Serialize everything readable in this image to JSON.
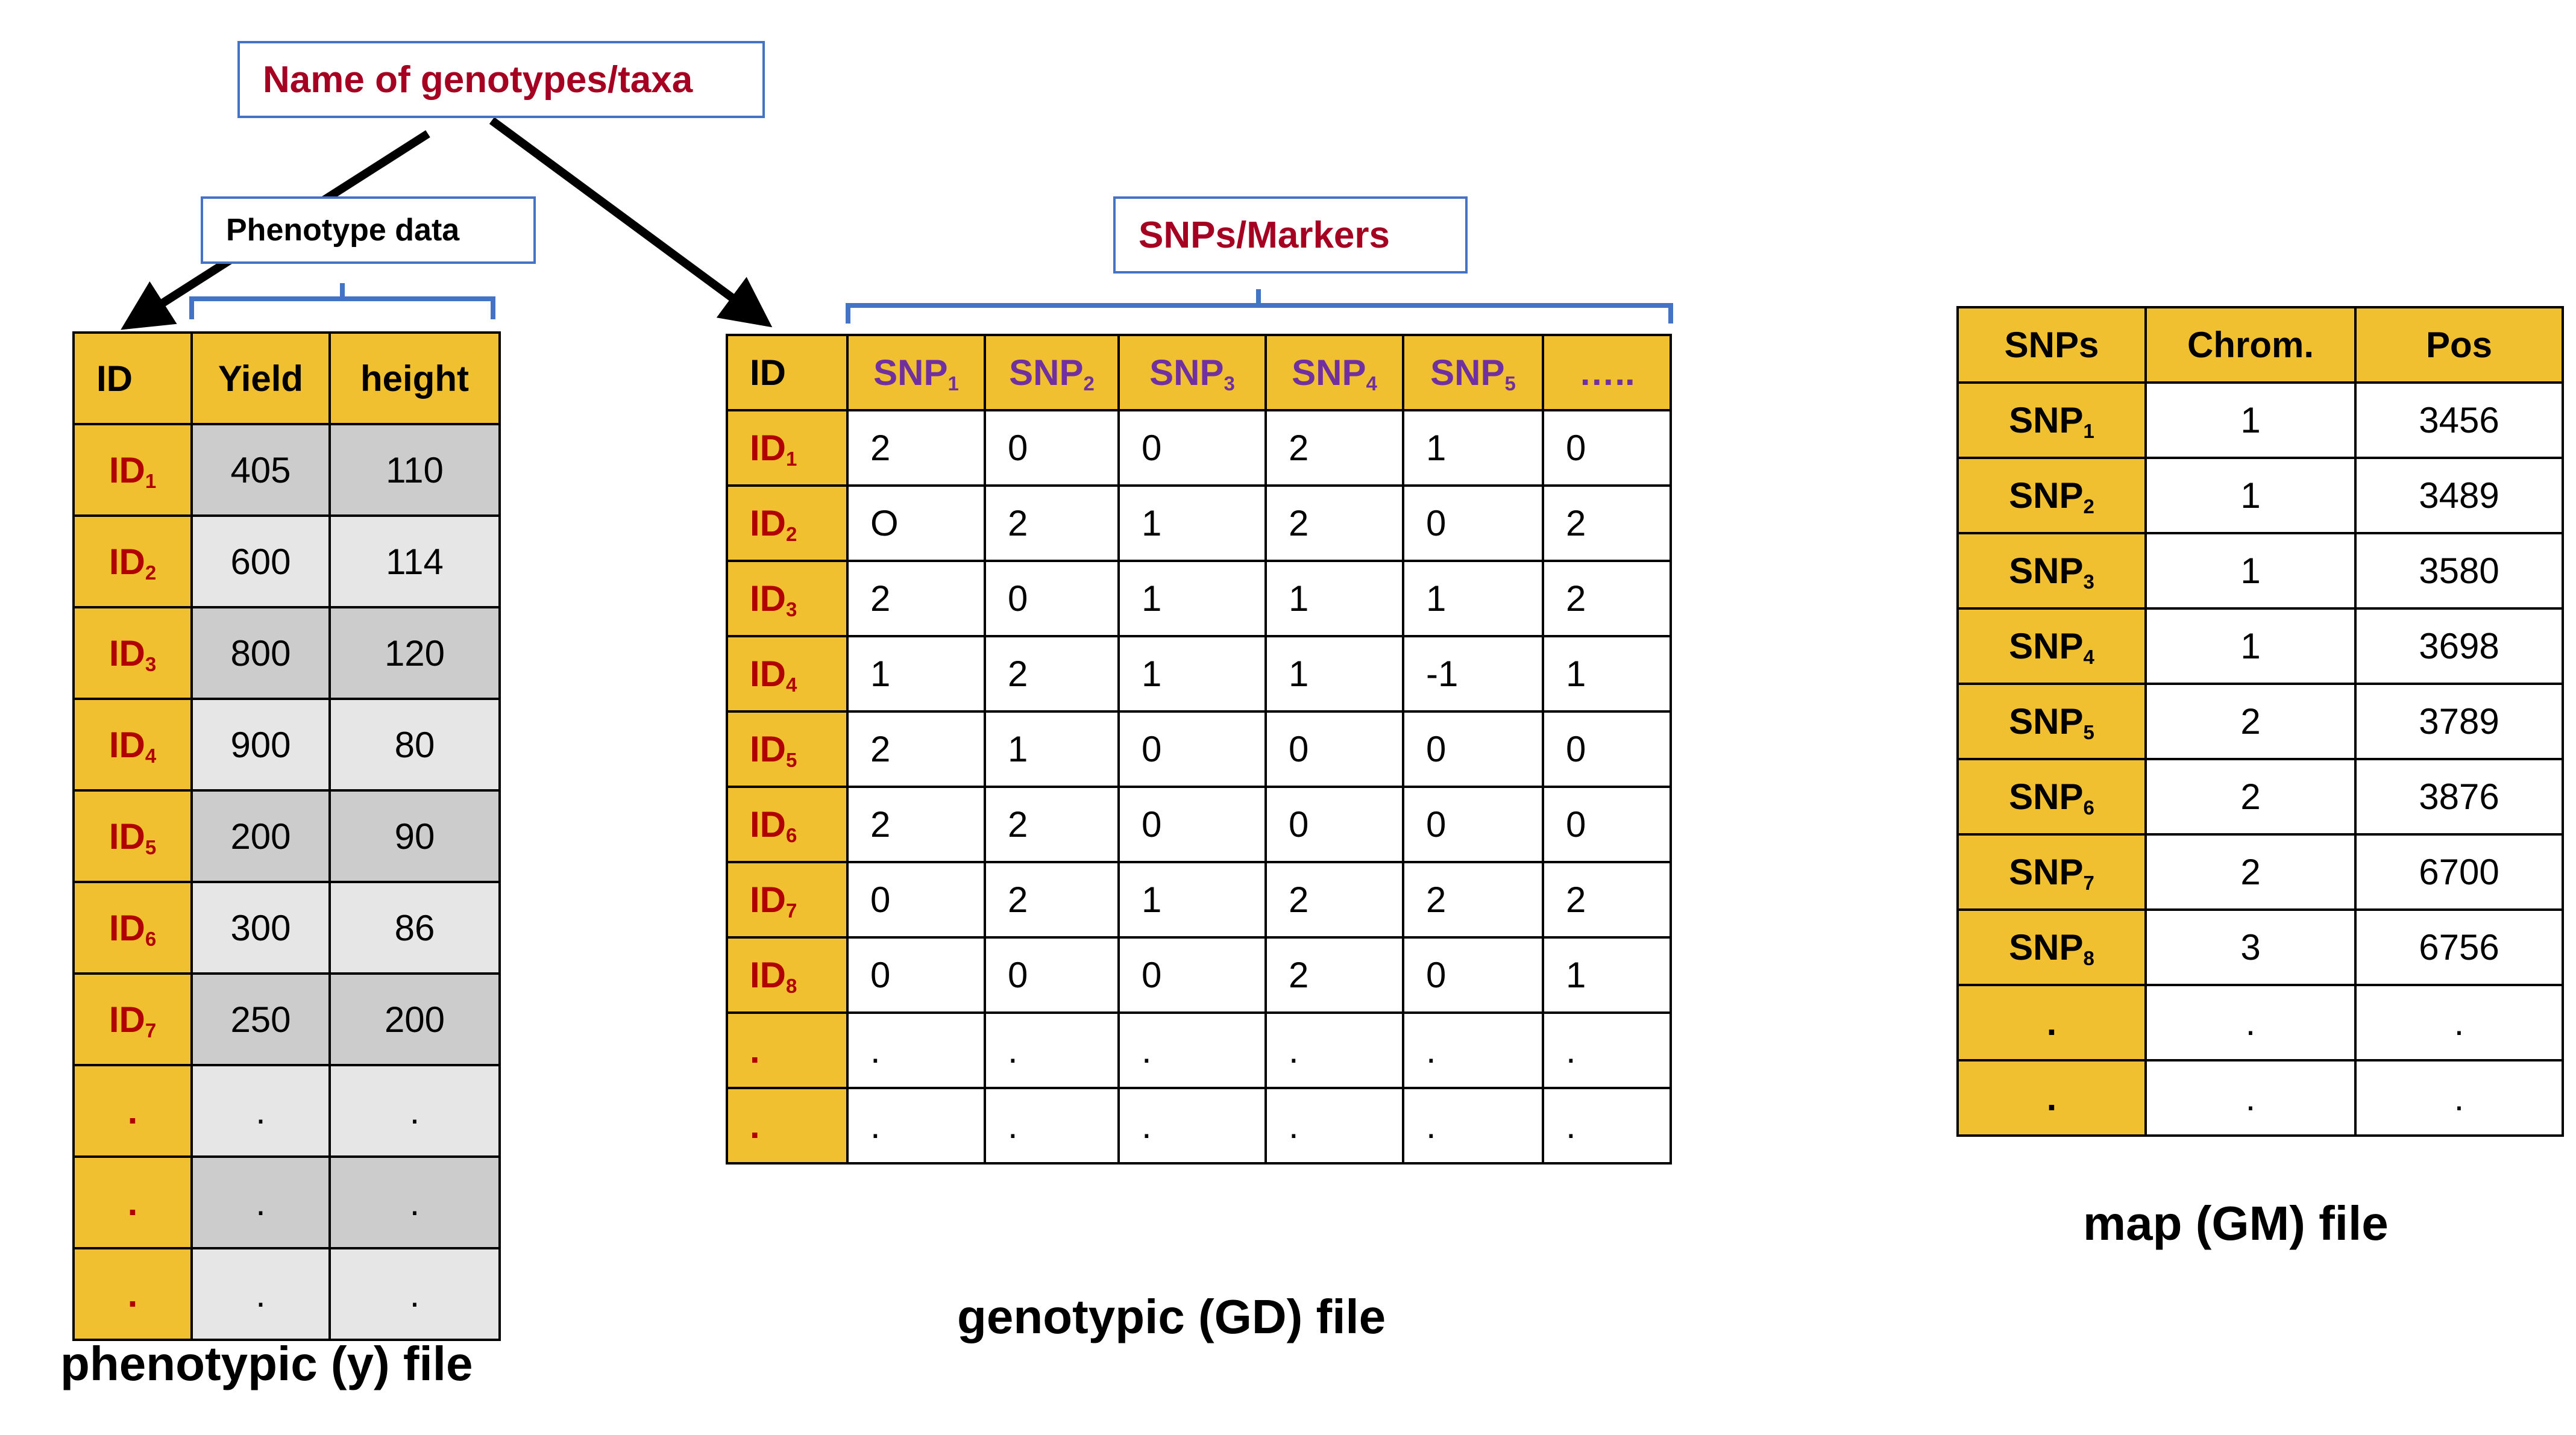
{
  "callouts": {
    "taxa": "Name of genotypes/taxa",
    "phenotype": "Phenotype data",
    "snps": "SNPs/Markers"
  },
  "colors": {
    "header_fill": "#f0c030",
    "id_text": "#b00000",
    "snp_header_text": "#7030a0",
    "callout_border": "#4472c4",
    "callout_red_text": "#a50021"
  },
  "phenotype_table": {
    "header": [
      "ID",
      "Yield",
      "height"
    ],
    "rows": [
      {
        "id": "ID",
        "sub": "1",
        "values": [
          "405",
          "110"
        ]
      },
      {
        "id": "ID",
        "sub": "2",
        "values": [
          "600",
          "114"
        ]
      },
      {
        "id": "ID",
        "sub": "3",
        "values": [
          "800",
          "120"
        ]
      },
      {
        "id": "ID",
        "sub": "4",
        "values": [
          "900",
          "80"
        ]
      },
      {
        "id": "ID",
        "sub": "5",
        "values": [
          "200",
          "90"
        ]
      },
      {
        "id": "ID",
        "sub": "6",
        "values": [
          "300",
          "86"
        ]
      },
      {
        "id": "ID",
        "sub": "7",
        "values": [
          "250",
          "200"
        ]
      },
      {
        "id": ".",
        "sub": "",
        "values": [
          ".",
          "."
        ]
      },
      {
        "id": ".",
        "sub": "",
        "values": [
          ".",
          "."
        ]
      },
      {
        "id": ".",
        "sub": "",
        "values": [
          ".",
          "."
        ]
      }
    ],
    "caption": "phenotypic (y) file"
  },
  "genotype_table": {
    "header": [
      {
        "text": "ID",
        "sub": ""
      },
      {
        "text": "SNP",
        "sub": "1"
      },
      {
        "text": "SNP",
        "sub": "2"
      },
      {
        "text": "SNP",
        "sub": "3"
      },
      {
        "text": "SNP",
        "sub": "4"
      },
      {
        "text": "SNP",
        "sub": "5"
      },
      {
        "text": "…..",
        "sub": ""
      }
    ],
    "rows": [
      {
        "id": "ID",
        "sub": "1",
        "values": [
          "2",
          "0",
          "0",
          "2",
          "1",
          "0"
        ]
      },
      {
        "id": "ID",
        "sub": "2",
        "values": [
          "O",
          "2",
          "1",
          "2",
          "0",
          "2"
        ]
      },
      {
        "id": "ID",
        "sub": "3",
        "values": [
          "2",
          "0",
          "1",
          "1",
          "1",
          "2"
        ]
      },
      {
        "id": "ID",
        "sub": "4",
        "values": [
          "1",
          "2",
          "1",
          "1",
          "-1",
          "1"
        ]
      },
      {
        "id": "ID",
        "sub": "5",
        "values": [
          "2",
          "1",
          "0",
          "0",
          "0",
          "0"
        ]
      },
      {
        "id": "ID",
        "sub": "6",
        "values": [
          "2",
          "2",
          "0",
          "0",
          "0",
          "0"
        ]
      },
      {
        "id": "ID",
        "sub": "7",
        "values": [
          "0",
          "2",
          "1",
          "2",
          "2",
          "2"
        ]
      },
      {
        "id": "ID",
        "sub": "8",
        "values": [
          "0",
          "0",
          "0",
          "2",
          "0",
          "1"
        ]
      },
      {
        "id": ".",
        "sub": "",
        "values": [
          ".",
          ".",
          ".",
          ".",
          ".",
          "."
        ]
      },
      {
        "id": ".",
        "sub": "",
        "values": [
          ".",
          ".",
          ".",
          ".",
          ".",
          "."
        ]
      }
    ],
    "caption": "genotypic (GD) file"
  },
  "map_table": {
    "header": [
      "SNPs",
      "Chrom.",
      "Pos"
    ],
    "rows": [
      {
        "snp": "SNP",
        "sub": "1",
        "chrom": "1",
        "pos": "3456"
      },
      {
        "snp": "SNP",
        "sub": "2",
        "chrom": "1",
        "pos": "3489"
      },
      {
        "snp": "SNP",
        "sub": "3",
        "chrom": "1",
        "pos": "3580"
      },
      {
        "snp": "SNP",
        "sub": "4",
        "chrom": "1",
        "pos": "3698"
      },
      {
        "snp": "SNP",
        "sub": "5",
        "chrom": "2",
        "pos": "3789"
      },
      {
        "snp": "SNP",
        "sub": "6",
        "chrom": "2",
        "pos": "3876"
      },
      {
        "snp": "SNP",
        "sub": "7",
        "chrom": "2",
        "pos": "6700"
      },
      {
        "snp": "SNP",
        "sub": "8",
        "chrom": "3",
        "pos": "6756"
      },
      {
        "snp": ".",
        "sub": "",
        "chrom": ".",
        "pos": "."
      },
      {
        "snp": ".",
        "sub": "",
        "chrom": ".",
        "pos": "."
      }
    ],
    "caption": "map (GM) file"
  }
}
